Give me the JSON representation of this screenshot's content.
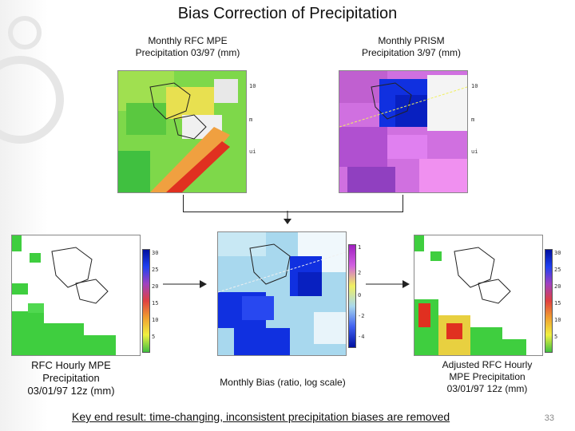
{
  "title": "Bias Correction of Precipitation",
  "panels": {
    "rfc_monthly": {
      "label_line1": "Monthly RFC MPE",
      "label_line2": "Precipitation 03/97 (mm)"
    },
    "prism_monthly": {
      "label_line1": "Monthly PRISM",
      "label_line2": "Precipitation 3/97 (mm)"
    },
    "rfc_hourly": {
      "label_line1": "RFC Hourly MPE",
      "label_line2": "Precipitation",
      "label_line3": "03/01/97 12z (mm)"
    },
    "bias": {
      "label": "Monthly Bias (ratio, log scale)"
    },
    "adjusted": {
      "label_line1": "Adjusted RFC Hourly",
      "label_line2": "MPE Precipitation",
      "label_line3": "03/01/97 12z (mm)"
    }
  },
  "hourly_ticks": [
    "30",
    "25",
    "20",
    "15",
    "10",
    "5"
  ],
  "colors": {
    "green": "#3fce3f",
    "blue": "#1030e0",
    "magenta": "#d060e0",
    "red": "#e03020",
    "lightblue": "#a8d8ee"
  },
  "footer": "Key end result:  time-changing, inconsistent precipitation biases are removed",
  "page_number": "33"
}
